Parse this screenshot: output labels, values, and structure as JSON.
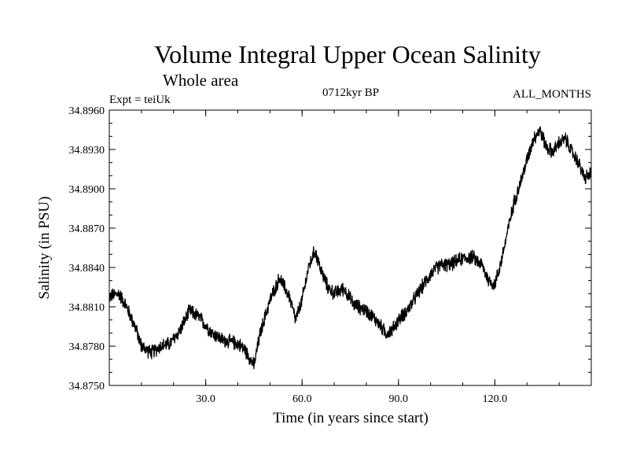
{
  "chart_data": {
    "type": "line",
    "title": "Volume Integral Upper Ocean Salinity",
    "subtitle": "Whole area",
    "experiment": "Expt = teiUk",
    "period": "0712kyr BP",
    "months": "ALL_MONTHS",
    "xlabel": "Time (in years since start)",
    "ylabel": "Salinity (in PSU)",
    "xlim": [
      0.0,
      150.0
    ],
    "ylim": [
      34.875,
      34.896
    ],
    "x_ticks": [
      30.0,
      60.0,
      90.0,
      120.0
    ],
    "x_tick_labels": [
      "30.0",
      "60.0",
      "90.0",
      "120.0"
    ],
    "y_ticks": [
      34.875,
      34.878,
      34.881,
      34.884,
      34.887,
      34.89,
      34.893,
      34.896
    ],
    "y_tick_labels": [
      "34.8750",
      "34.8780",
      "34.8810",
      "34.8840",
      "34.8870",
      "34.8900",
      "34.8930",
      "34.8960"
    ],
    "line_color": "#000000",
    "noise_amplitude": 0.0009,
    "series": [
      {
        "name": "Salinity",
        "x": [
          0,
          3,
          5,
          8,
          10,
          13,
          16,
          19,
          22,
          25,
          28,
          32,
          35,
          38,
          40,
          42,
          44,
          45,
          47,
          50,
          53,
          56,
          58,
          60,
          62,
          64,
          66,
          68,
          70,
          73,
          76,
          80,
          83,
          86,
          88,
          90,
          93,
          96,
          100,
          103,
          106,
          110,
          113,
          116,
          118,
          120,
          122,
          124,
          126,
          128,
          130,
          132,
          134,
          136,
          138,
          140,
          142,
          144,
          146,
          148,
          150
        ],
        "y": [
          34.8818,
          34.882,
          34.8812,
          34.8795,
          34.878,
          34.8775,
          34.878,
          34.8782,
          34.8792,
          34.8807,
          34.8802,
          34.879,
          34.8785,
          34.8783,
          34.8782,
          34.8778,
          34.877,
          34.8765,
          34.879,
          34.8815,
          34.8832,
          34.8818,
          34.88,
          34.8815,
          34.884,
          34.8853,
          34.8837,
          34.8825,
          34.882,
          34.8824,
          34.8812,
          34.8807,
          34.88,
          34.879,
          34.8792,
          34.88,
          34.8808,
          34.882,
          34.8835,
          34.8842,
          34.8842,
          34.8847,
          34.8848,
          34.8842,
          34.883,
          34.8827,
          34.8845,
          34.8868,
          34.889,
          34.8905,
          34.8922,
          34.8938,
          34.8945,
          34.8932,
          34.8928,
          34.8935,
          34.8938,
          34.8928,
          34.892,
          34.8908,
          34.8912
        ]
      }
    ]
  }
}
